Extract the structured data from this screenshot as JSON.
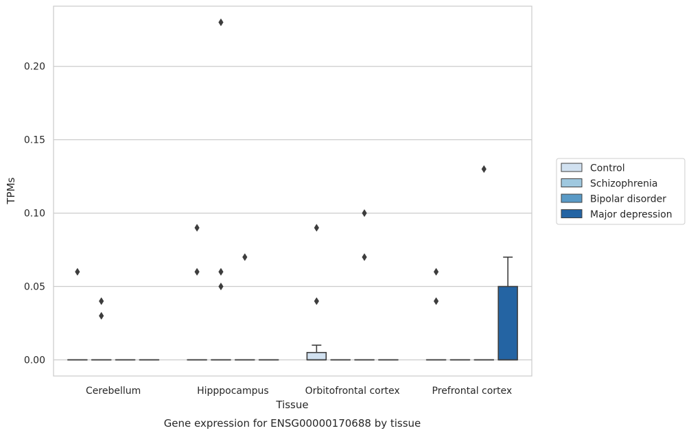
{
  "chart_data": {
    "type": "box",
    "title": "",
    "caption": "Gene expression for ENSG00000170688 by tissue",
    "xlabel": "Tissue",
    "ylabel": "TPMs",
    "ylim": [
      -0.011,
      0.241
    ],
    "yticks": [
      0.0,
      0.05,
      0.1,
      0.15,
      0.2
    ],
    "ytick_labels": [
      "0.00",
      "0.05",
      "0.10",
      "0.15",
      "0.20"
    ],
    "grid": "horizontal",
    "legend_position": "right",
    "categories": [
      "Cerebellum",
      "Hipppocampus",
      "Orbitofrontal cortex",
      "Prefrontal cortex"
    ],
    "series": [
      {
        "name": "Control",
        "color": "#d1e1f0",
        "boxes": [
          {
            "q1": 0.0,
            "median": 0.0,
            "q3": 0.0,
            "whisker_low": 0.0,
            "whisker_high": 0.0,
            "outliers": [
              0.06
            ]
          },
          {
            "q1": 0.0,
            "median": 0.0,
            "q3": 0.0,
            "whisker_low": 0.0,
            "whisker_high": 0.0,
            "outliers": [
              0.09,
              0.06
            ]
          },
          {
            "q1": 0.0,
            "median": 0.0,
            "q3": 0.005,
            "whisker_low": 0.0,
            "whisker_high": 0.01,
            "outliers": [
              0.09,
              0.04
            ]
          },
          {
            "q1": 0.0,
            "median": 0.0,
            "q3": 0.0,
            "whisker_low": 0.0,
            "whisker_high": 0.0,
            "outliers": [
              0.06,
              0.04
            ]
          }
        ]
      },
      {
        "name": "Schizophrenia",
        "color": "#9fc8df",
        "boxes": [
          {
            "q1": 0.0,
            "median": 0.0,
            "q3": 0.0,
            "whisker_low": 0.0,
            "whisker_high": 0.0,
            "outliers": [
              0.04,
              0.03
            ]
          },
          {
            "q1": 0.0,
            "median": 0.0,
            "q3": 0.0,
            "whisker_low": 0.0,
            "whisker_high": 0.0,
            "outliers": [
              0.06,
              0.05,
              0.23
            ]
          },
          {
            "q1": 0.0,
            "median": 0.0,
            "q3": 0.0,
            "whisker_low": 0.0,
            "whisker_high": 0.0,
            "outliers": []
          },
          {
            "q1": 0.0,
            "median": 0.0,
            "q3": 0.0,
            "whisker_low": 0.0,
            "whisker_high": 0.0,
            "outliers": []
          }
        ]
      },
      {
        "name": "Bipolar disorder",
        "color": "#5a9ac6",
        "boxes": [
          {
            "q1": 0.0,
            "median": 0.0,
            "q3": 0.0,
            "whisker_low": 0.0,
            "whisker_high": 0.0,
            "outliers": []
          },
          {
            "q1": 0.0,
            "median": 0.0,
            "q3": 0.0,
            "whisker_low": 0.0,
            "whisker_high": 0.0,
            "outliers": [
              0.07
            ]
          },
          {
            "q1": 0.0,
            "median": 0.0,
            "q3": 0.0,
            "whisker_low": 0.0,
            "whisker_high": 0.0,
            "outliers": [
              0.1,
              0.07
            ]
          },
          {
            "q1": 0.0,
            "median": 0.0,
            "q3": 0.0,
            "whisker_low": 0.0,
            "whisker_high": 0.0,
            "outliers": [
              0.13
            ]
          }
        ]
      },
      {
        "name": "Major depression",
        "color": "#2464a3",
        "boxes": [
          {
            "q1": 0.0,
            "median": 0.0,
            "q3": 0.0,
            "whisker_low": 0.0,
            "whisker_high": 0.0,
            "outliers": []
          },
          {
            "q1": 0.0,
            "median": 0.0,
            "q3": 0.0,
            "whisker_low": 0.0,
            "whisker_high": 0.0,
            "outliers": []
          },
          {
            "q1": 0.0,
            "median": 0.0,
            "q3": 0.0,
            "whisker_low": 0.0,
            "whisker_high": 0.0,
            "outliers": []
          },
          {
            "q1": 0.0,
            "median": 0.0,
            "q3": 0.05,
            "whisker_low": 0.0,
            "whisker_high": 0.07,
            "outliers": []
          }
        ]
      }
    ]
  }
}
